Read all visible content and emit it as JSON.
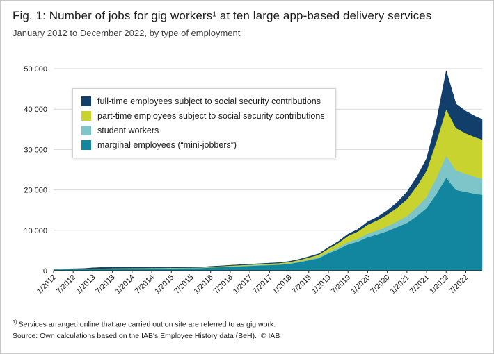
{
  "chart_data": {
    "type": "area",
    "stacked": true,
    "title": "Fig. 1: Number of jobs for gig workers¹ at ten large app-based delivery services",
    "subtitle": "January 2012 to December 2022, by type of employment",
    "xlabel": "",
    "ylabel": "",
    "ylim": [
      0,
      50000
    ],
    "grid": "horizontal",
    "legend_position": "top-left-inside",
    "x": [
      "1/2012",
      "4/2012",
      "7/2012",
      "10/2012",
      "1/2013",
      "4/2013",
      "7/2013",
      "10/2013",
      "1/2014",
      "4/2014",
      "7/2014",
      "10/2014",
      "1/2015",
      "4/2015",
      "7/2015",
      "10/2015",
      "1/2016",
      "4/2016",
      "7/2016",
      "10/2016",
      "1/2017",
      "4/2017",
      "7/2017",
      "10/2017",
      "1/2018",
      "4/2018",
      "7/2018",
      "10/2018",
      "1/2019",
      "4/2019",
      "7/2019",
      "10/2019",
      "1/2020",
      "4/2020",
      "7/2020",
      "10/2020",
      "1/2021",
      "4/2021",
      "7/2021",
      "10/2021",
      "1/2022",
      "4/2022",
      "7/2022",
      "10/2022",
      "12/2022"
    ],
    "x_ticks": [
      "1/2012",
      "7/2012",
      "1/2013",
      "7/2013",
      "1/2014",
      "7/2014",
      "1/2015",
      "7/2015",
      "1/2016",
      "7/2016",
      "1/2017",
      "7/2017",
      "1/2018",
      "7/2018",
      "1/2019",
      "7/2019",
      "1/2020",
      "7/2020",
      "1/2021",
      "7/2021",
      "1/2022",
      "7/2022"
    ],
    "y_ticks": [
      0,
      10000,
      20000,
      30000,
      40000,
      50000
    ],
    "y_tick_labels": [
      "0",
      "10 000",
      "20 000",
      "30 000",
      "40 000",
      "50 000"
    ],
    "series": [
      {
        "id": "marginal",
        "name": "marginal employees (“mini-jobbers”)",
        "color": "#12869e",
        "values": [
          300,
          350,
          400,
          420,
          450,
          480,
          500,
          500,
          520,
          540,
          560,
          560,
          580,
          600,
          620,
          650,
          800,
          900,
          1000,
          1100,
          1200,
          1300,
          1400,
          1500,
          1700,
          2100,
          2600,
          3100,
          4300,
          5300,
          6500,
          7200,
          8300,
          9000,
          9800,
          10800,
          11800,
          13500,
          15500,
          19000,
          23000,
          20000,
          19500,
          19000,
          18800
        ]
      },
      {
        "id": "student",
        "name": "student workers",
        "color": "#7dc5c8",
        "values": [
          20,
          20,
          30,
          30,
          30,
          30,
          40,
          40,
          40,
          40,
          50,
          50,
          50,
          50,
          60,
          60,
          70,
          80,
          90,
          100,
          100,
          110,
          120,
          130,
          150,
          180,
          220,
          280,
          350,
          450,
          600,
          700,
          900,
          1000,
          1200,
          1400,
          1700,
          2200,
          2800,
          4000,
          5500,
          4800,
          4500,
          4200,
          4000
        ]
      },
      {
        "id": "parttime",
        "name": "part-time employees subject to social security contributions",
        "color": "#c8d32f",
        "values": [
          30,
          30,
          40,
          40,
          50,
          60,
          60,
          70,
          70,
          80,
          80,
          80,
          90,
          90,
          100,
          100,
          120,
          140,
          160,
          180,
          200,
          220,
          240,
          260,
          300,
          360,
          450,
          560,
          800,
          1100,
          1500,
          1800,
          2200,
          2500,
          2900,
          3400,
          4200,
          5200,
          6500,
          9000,
          11500,
          10500,
          10000,
          9800,
          9700
        ]
      },
      {
        "id": "fulltime",
        "name": "full-time employees subject to social security contributions",
        "color": "#123e6b",
        "values": [
          20,
          30,
          30,
          50,
          200,
          250,
          280,
          280,
          250,
          200,
          150,
          120,
          80,
          80,
          80,
          80,
          90,
          90,
          100,
          110,
          110,
          120,
          130,
          140,
          160,
          180,
          210,
          260,
          320,
          380,
          470,
          560,
          700,
          800,
          1000,
          1300,
          1800,
          2300,
          3000,
          5000,
          9500,
          6000,
          5500,
          5200,
          5000
        ]
      }
    ],
    "legend": [
      {
        "id": "fulltime",
        "label": "full-time employees subject to social security contributions",
        "color": "#123e6b"
      },
      {
        "id": "parttime",
        "label": "part-time employees subject to social security contributions",
        "color": "#c8d32f"
      },
      {
        "id": "student",
        "label": "student workers",
        "color": "#7dc5c8"
      },
      {
        "id": "marginal",
        "label": "marginal employees (“mini-jobbers”)",
        "color": "#12869e"
      }
    ]
  },
  "notes": {
    "footnote_sup": "1)",
    "footnote_text": "Services arranged online that are carried out on site are referred to as gig work.",
    "source": "Source: Own calculations based on the IAB's Employee History data (BeH).  © IAB"
  }
}
